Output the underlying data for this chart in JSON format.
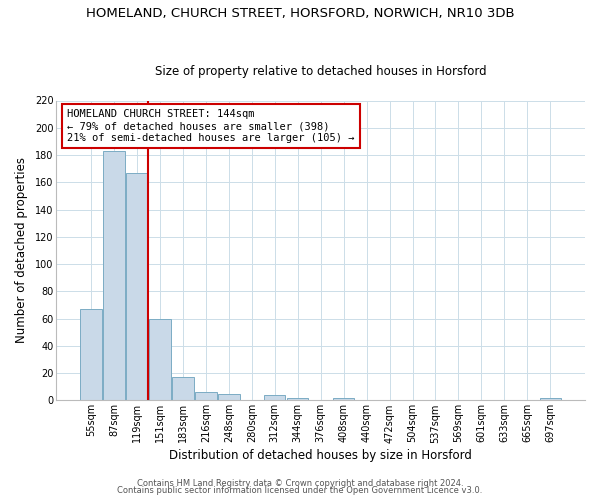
{
  "title": "HOMELAND, CHURCH STREET, HORSFORD, NORWICH, NR10 3DB",
  "subtitle": "Size of property relative to detached houses in Horsford",
  "xlabel": "Distribution of detached houses by size in Horsford",
  "ylabel": "Number of detached properties",
  "bar_labels": [
    "55sqm",
    "87sqm",
    "119sqm",
    "151sqm",
    "183sqm",
    "216sqm",
    "248sqm",
    "280sqm",
    "312sqm",
    "344sqm",
    "376sqm",
    "408sqm",
    "440sqm",
    "472sqm",
    "504sqm",
    "537sqm",
    "569sqm",
    "601sqm",
    "633sqm",
    "665sqm",
    "697sqm"
  ],
  "bar_heights": [
    67,
    183,
    167,
    60,
    17,
    6,
    5,
    0,
    4,
    2,
    0,
    2,
    0,
    0,
    0,
    0,
    0,
    0,
    0,
    0,
    2
  ],
  "bar_color": "#c9d9e8",
  "bar_edge_color": "#7bacc4",
  "vline_color": "#cc0000",
  "annotation_text": "HOMELAND CHURCH STREET: 144sqm\n← 79% of detached houses are smaller (398)\n21% of semi-detached houses are larger (105) →",
  "annotation_box_color": "#ffffff",
  "annotation_box_edge": "#cc0000",
  "ylim": [
    0,
    220
  ],
  "yticks": [
    0,
    20,
    40,
    60,
    80,
    100,
    120,
    140,
    160,
    180,
    200,
    220
  ],
  "footer1": "Contains HM Land Registry data © Crown copyright and database right 2024.",
  "footer2": "Contains public sector information licensed under the Open Government Licence v3.0.",
  "background_color": "#ffffff",
  "grid_color": "#ccdde8",
  "title_fontsize": 9.5,
  "subtitle_fontsize": 8.5,
  "axis_label_fontsize": 8.5,
  "tick_fontsize": 7,
  "footer_fontsize": 6,
  "annotation_fontsize": 7.5
}
